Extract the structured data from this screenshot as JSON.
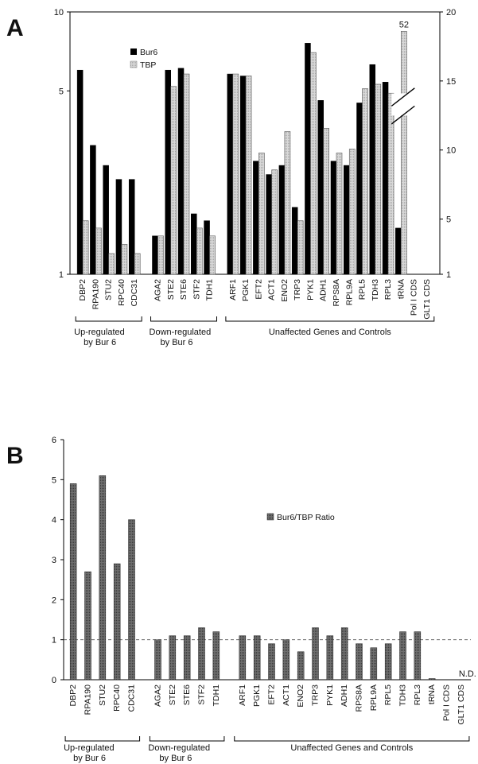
{
  "panel_a": {
    "letter": "A"
  },
  "panel_b": {
    "letter": "B"
  },
  "chart_data": [
    {
      "type": "bar",
      "panel": "A",
      "title": "",
      "xlabel": "",
      "ylabel": "",
      "y_scale": "log",
      "ylim": [
        1,
        10
      ],
      "y_ticks": [
        "1",
        "5",
        "10"
      ],
      "y2lim": [
        1,
        20
      ],
      "y2_ticks": [
        "1",
        "5",
        "10",
        "15",
        "20"
      ],
      "legend_placement": "top-left",
      "grid": false,
      "categories": [
        "DBP2",
        "RPA190",
        "STU2",
        "RPC40",
        "CDC31",
        "AGA2",
        "STE2",
        "STE6",
        "STF2",
        "TDH1",
        "ARF1",
        "PGK1",
        "EFT2",
        "ACT1",
        "ENO2",
        "TRP3",
        "PYK1",
        "ADH1",
        "RPS8A",
        "RPL9A",
        "RPL5",
        "TDH3",
        "RPL3",
        "tRNA",
        "Pol I CDS",
        "GLT1 CDS"
      ],
      "group_index": [
        0,
        0,
        0,
        0,
        0,
        1,
        1,
        1,
        1,
        1,
        2,
        2,
        2,
        2,
        2,
        2,
        2,
        2,
        2,
        2,
        2,
        2,
        2,
        2,
        2,
        2
      ],
      "series": [
        {
          "name": "Bur6",
          "color": "#000000",
          "values": [
            6.0,
            3.1,
            2.6,
            2.3,
            2.3,
            1.4,
            6.0,
            6.1,
            1.7,
            1.6,
            5.8,
            5.7,
            2.7,
            2.4,
            2.6,
            1.8,
            7.6,
            4.6,
            2.7,
            2.6,
            4.5,
            6.3,
            5.4,
            1.5,
            null,
            null
          ]
        },
        {
          "name": "TBP",
          "color": "#cccccc",
          "values": [
            1.6,
            1.5,
            1.2,
            1.3,
            1.2,
            1.4,
            5.2,
            5.8,
            1.5,
            1.4,
            5.8,
            5.7,
            2.9,
            2.5,
            3.5,
            1.6,
            7.0,
            3.6,
            2.9,
            3.0,
            5.1,
            5.3,
            4.9,
            null,
            null,
            null
          ]
        }
      ],
      "broken_bar_label": "52",
      "broken_bar_value": 52
    },
    {
      "type": "bar",
      "panel": "B",
      "title": "",
      "xlabel": "",
      "ylabel": "",
      "ylim": [
        0,
        6
      ],
      "y_ticks": [
        "0",
        "1",
        "2",
        "3",
        "4",
        "5",
        "6"
      ],
      "reference_line": 1,
      "legend_placement": "top-right",
      "grid": false,
      "categories": [
        "DBP2",
        "RPA190",
        "STU2",
        "RPC40",
        "CDC31",
        "AGA2",
        "STE2",
        "STE6",
        "STF2",
        "TDH1",
        "ARF1",
        "PGK1",
        "EFT2",
        "ACT1",
        "ENO2",
        "TRP3",
        "PYK1",
        "ADH1",
        "RPS8A",
        "RPL9A",
        "RPL5",
        "TDH3",
        "RPL3",
        "tRNA",
        "Pol I CDS",
        "GLT1 CDS"
      ],
      "group_index": [
        0,
        0,
        0,
        0,
        0,
        1,
        1,
        1,
        1,
        1,
        2,
        2,
        2,
        2,
        2,
        2,
        2,
        2,
        2,
        2,
        2,
        2,
        2,
        2,
        2,
        2
      ],
      "series": [
        {
          "name": "Bur6/TBP Ratio",
          "color": "#666666",
          "values": [
            4.9,
            2.7,
            5.1,
            2.9,
            4.0,
            1.0,
            1.1,
            1.1,
            1.3,
            1.2,
            1.1,
            1.1,
            0.9,
            1.0,
            0.7,
            1.3,
            1.1,
            1.3,
            0.9,
            0.8,
            0.9,
            1.2,
            1.2,
            0.03,
            null,
            null
          ]
        }
      ],
      "nd_label": "N.D."
    }
  ],
  "groups": [
    {
      "line1": "Up-regulated",
      "line2": "by Bur 6"
    },
    {
      "line1": "Down-regulated",
      "line2": "by Bur 6"
    },
    {
      "line1": "Unaffected Genes and Controls",
      "line2": ""
    }
  ]
}
